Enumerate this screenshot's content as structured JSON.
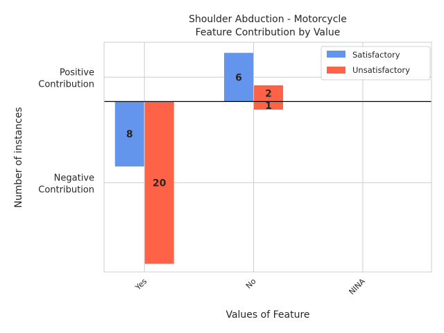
{
  "chart_data": {
    "type": "bar",
    "title": "Shoulder Abduction - Motorcycle",
    "subtitle": "Feature Contribution by Value",
    "xlabel": "Values of Feature",
    "ylabel": "Number of instances",
    "categories": [
      "Yes",
      "No",
      "NINA"
    ],
    "series": [
      {
        "name": "Satisfactory",
        "color": "#6495ED",
        "values": [
          -8,
          6,
          null
        ],
        "labels": [
          "8",
          "6",
          ""
        ]
      },
      {
        "name": "Unsatisfactory",
        "color": "#FF6347",
        "values": [
          -20,
          1,
          null
        ],
        "stack_positive": [
          0,
          2,
          null
        ],
        "stack_negative": [
          -20,
          -1,
          null
        ],
        "labels": [
          "20",
          "2",
          ""
        ],
        "labels_secondary": [
          "",
          "1",
          ""
        ]
      }
    ],
    "ylim": [
      -21,
      7.3
    ],
    "yticks": [
      {
        "value": 3,
        "label_lines": [
          "Positive",
          "Contribution"
        ]
      },
      {
        "value": -10,
        "label_lines": [
          "Negative",
          "Contribution"
        ]
      }
    ],
    "zero_line": true,
    "grid": true,
    "legend_position": "top-right"
  }
}
